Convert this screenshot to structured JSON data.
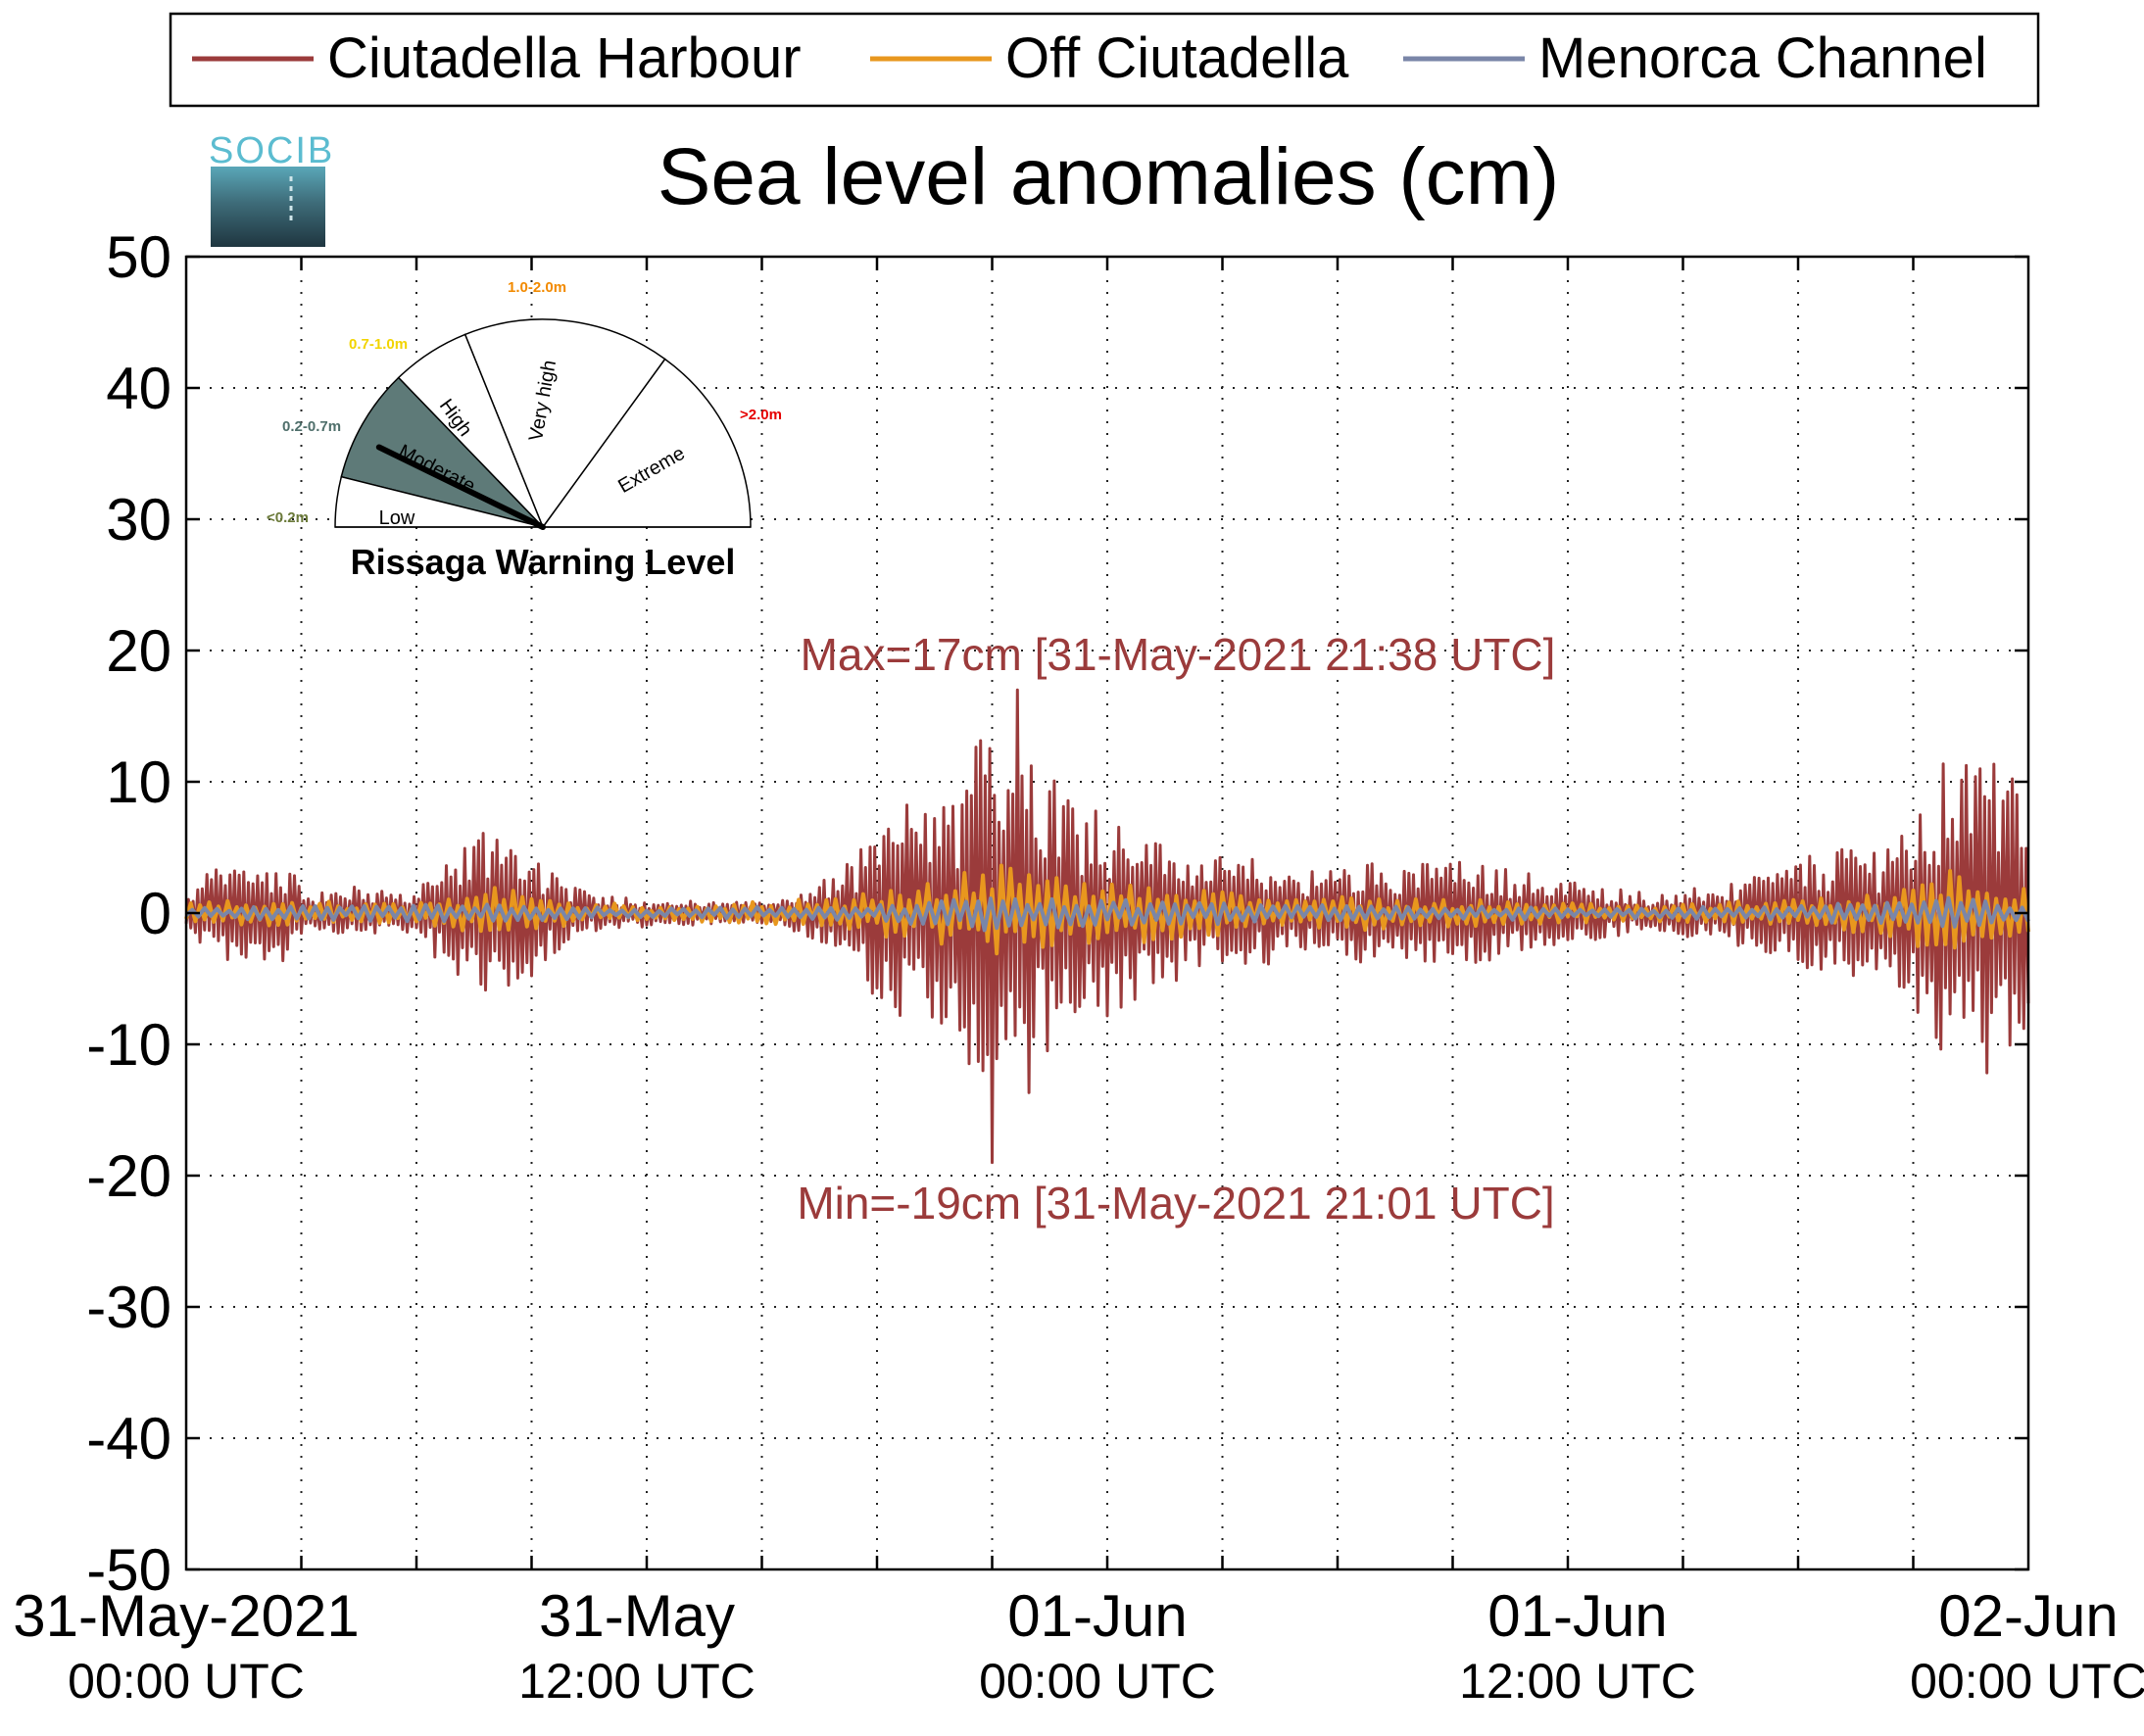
{
  "legend": [
    {
      "label": "Ciutadella Harbour",
      "color": "#9b3b3b"
    },
    {
      "label": "Off Ciutadella",
      "color": "#e8971e"
    },
    {
      "label": "Menorca Channel",
      "color": "#7a86a8"
    }
  ],
  "logo": {
    "text": "SOCIB"
  },
  "gauge": {
    "title": "Rissaga Warning Level",
    "level_selected": "Moderate",
    "sectors": [
      {
        "name": "Low",
        "range": "<0.2m",
        "color": "#6b7a3a"
      },
      {
        "name": "Moderate",
        "range": "0.2-0.7m",
        "color": "#4f6f6b"
      },
      {
        "name": "High",
        "range": "0.7-1.0m",
        "color": "#f2d400"
      },
      {
        "name": "Very high",
        "range": "1.0-2.0m",
        "color": "#f28a00"
      },
      {
        "name": "Extreme",
        "range": ">2.0m",
        "color": "#e60000"
      }
    ],
    "fill_color": "#5e7a78"
  },
  "annotations": {
    "max_text": "Max=17cm [31-May-2021 21:38 UTC]",
    "min_text": "Min=-19cm [31-May-2021 21:01 UTC]",
    "color": "#9b3b3b"
  },
  "chart_data": {
    "type": "line",
    "title": "Sea level anomalies (cm)",
    "xlabel": "",
    "ylabel": "",
    "ylim": [
      -50,
      50
    ],
    "xlim_hours": [
      0,
      48
    ],
    "yticks": [
      50,
      40,
      30,
      20,
      10,
      0,
      -10,
      -20,
      -30,
      -40,
      -50
    ],
    "ytick_labels": [
      "50",
      "40",
      "30",
      "20",
      "10",
      "0",
      "-10",
      "-20",
      "-30",
      "-40",
      "-50"
    ],
    "xticks": [
      {
        "line1": "31-May-2021",
        "line2": "00:00 UTC"
      },
      {
        "line1": "31-May",
        "line2": "12:00 UTC"
      },
      {
        "line1": "01-Jun",
        "line2": "00:00 UTC"
      },
      {
        "line1": "01-Jun",
        "line2": "12:00 UTC"
      },
      {
        "line1": "02-Jun",
        "line2": "00:00 UTC"
      }
    ],
    "grid": true,
    "legend_position": "top",
    "envelope_keyframes": {
      "Ciutadella Harbour": [
        [
          0,
          1
        ],
        [
          0.5,
          3
        ],
        [
          1.5,
          4
        ],
        [
          2.5,
          4
        ],
        [
          3.2,
          1.5
        ],
        [
          4.5,
          2
        ],
        [
          6,
          1.5
        ],
        [
          7,
          5
        ],
        [
          8,
          7
        ],
        [
          9,
          5
        ],
        [
          10,
          2
        ],
        [
          12,
          1
        ],
        [
          14,
          0.8
        ],
        [
          15.5,
          1
        ],
        [
          17,
          3
        ],
        [
          18.5,
          8
        ],
        [
          20,
          9
        ],
        [
          21,
          15
        ],
        [
          22,
          14
        ],
        [
          23,
          10
        ],
        [
          24,
          8
        ],
        [
          25,
          6
        ],
        [
          26,
          5
        ],
        [
          27,
          4
        ],
        [
          28,
          4
        ],
        [
          29,
          3
        ],
        [
          31,
          4
        ],
        [
          33,
          4
        ],
        [
          35,
          3
        ],
        [
          37,
          2
        ],
        [
          38,
          1.5
        ],
        [
          40,
          2
        ],
        [
          42,
          4
        ],
        [
          43,
          5
        ],
        [
          44,
          5
        ],
        [
          45,
          7
        ],
        [
          46,
          12
        ],
        [
          47,
          13
        ],
        [
          48,
          9
        ]
      ],
      "Off Ciutadella": [
        [
          0,
          0.8
        ],
        [
          2,
          1
        ],
        [
          6,
          0.7
        ],
        [
          8,
          2
        ],
        [
          10,
          1
        ],
        [
          12,
          0.5
        ],
        [
          16,
          1
        ],
        [
          19,
          2
        ],
        [
          21,
          4
        ],
        [
          22,
          3
        ],
        [
          24,
          2.5
        ],
        [
          28,
          1.5
        ],
        [
          34,
          1
        ],
        [
          38,
          0.6
        ],
        [
          42,
          1
        ],
        [
          44,
          1.5
        ],
        [
          46,
          3.5
        ],
        [
          48,
          2
        ]
      ],
      "Menorca Channel": [
        [
          0,
          0.4
        ],
        [
          8,
          0.7
        ],
        [
          12,
          0.3
        ],
        [
          18,
          0.6
        ],
        [
          20.5,
          1.2
        ],
        [
          21,
          2
        ],
        [
          22,
          1.2
        ],
        [
          24,
          1
        ],
        [
          30,
          0.6
        ],
        [
          38,
          0.4
        ],
        [
          42,
          0.6
        ],
        [
          46,
          1.2
        ],
        [
          48,
          0.7
        ]
      ]
    },
    "series": [
      {
        "name": "Ciutadella Harbour",
        "max": 17,
        "max_time": "31-May-2021 21:38 UTC",
        "min": -19,
        "min_time": "31-May-2021 21:01 UTC"
      },
      {
        "name": "Off Ciutadella"
      },
      {
        "name": "Menorca Channel"
      }
    ]
  }
}
